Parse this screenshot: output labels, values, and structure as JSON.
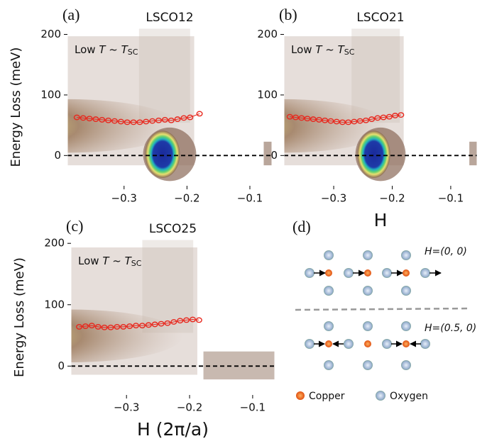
{
  "chart_data": [
    {
      "type": "scatter",
      "panel": "(a)",
      "title": "LSCO12",
      "annotation": [
        "Low ",
        "T",
        " ~ ",
        "T",
        "SC"
      ],
      "y_label": "Energy Loss (meV)",
      "blob": true,
      "xlim": [
        -0.39,
        -0.065
      ],
      "ylim": [
        -50,
        210
      ],
      "xticks": [
        {
          "value": -0.3,
          "label": "−0.3"
        },
        {
          "value": -0.2,
          "label": "−0.2"
        },
        {
          "value": -0.1,
          "label": "−0.1"
        }
      ],
      "yticks": [
        0,
        100,
        200
      ],
      "hline": 0,
      "series": [
        {
          "color": "#e8281e",
          "x": [
            -0.375,
            -0.365,
            -0.355,
            -0.345,
            -0.335,
            -0.325,
            -0.315,
            -0.305,
            -0.295,
            -0.285,
            -0.275,
            -0.265,
            -0.255,
            -0.245,
            -0.235,
            -0.225,
            -0.215,
            -0.205,
            -0.195,
            -0.18
          ],
          "values": [
            63,
            62,
            61,
            60,
            59,
            58,
            57,
            56,
            55,
            55,
            55,
            56,
            57,
            58,
            59,
            58,
            60,
            62,
            63,
            69
          ]
        }
      ]
    },
    {
      "type": "scatter",
      "panel": "(b)",
      "title": "LSCO21",
      "annotation": [
        "Low ",
        "T",
        " ~ ",
        "T",
        "SC"
      ],
      "x_label": "H",
      "blob": true,
      "xlim": [
        -0.385,
        -0.055
      ],
      "ylim": [
        -50,
        210
      ],
      "xticks": [
        {
          "value": -0.3,
          "label": "−0.3"
        },
        {
          "value": -0.2,
          "label": "−0.2"
        },
        {
          "value": -0.1,
          "label": "−0.1"
        }
      ],
      "yticks": [
        0,
        100,
        200
      ],
      "hline": 0,
      "series": [
        {
          "color": "#e8281e",
          "x": [
            -0.375,
            -0.365,
            -0.355,
            -0.345,
            -0.335,
            -0.325,
            -0.315,
            -0.305,
            -0.295,
            -0.285,
            -0.275,
            -0.265,
            -0.255,
            -0.245,
            -0.235,
            -0.225,
            -0.215,
            -0.205,
            -0.195,
            -0.185
          ],
          "values": [
            64,
            63,
            62,
            61,
            60,
            59,
            58,
            57,
            56,
            55,
            55,
            56,
            57,
            58,
            60,
            62,
            63,
            64,
            66,
            67
          ]
        }
      ]
    },
    {
      "type": "scatter",
      "panel": "(c)",
      "title": "LSCO25",
      "annotation": [
        "Low ",
        "T",
        " ~ ",
        "T",
        "SC"
      ],
      "y_label": "Energy Loss (meV)",
      "x_label": "H (2π/a)",
      "blob": false,
      "xlim": [
        -0.388,
        -0.065
      ],
      "ylim": [
        -47,
        206
      ],
      "xticks": [
        {
          "value": -0.3,
          "label": "−0.3"
        },
        {
          "value": -0.2,
          "label": "−0.2"
        },
        {
          "value": -0.1,
          "label": "−0.1"
        }
      ],
      "yticks": [
        0,
        100,
        200
      ],
      "hline": 0,
      "series": [
        {
          "color": "#e8281e",
          "x": [
            -0.375,
            -0.365,
            -0.355,
            -0.345,
            -0.335,
            -0.325,
            -0.315,
            -0.305,
            -0.295,
            -0.285,
            -0.275,
            -0.265,
            -0.255,
            -0.245,
            -0.235,
            -0.225,
            -0.215,
            -0.205,
            -0.195,
            -0.185
          ],
          "values": [
            64,
            65,
            66,
            64,
            63,
            63,
            64,
            64,
            65,
            66,
            66,
            67,
            68,
            69,
            70,
            72,
            74,
            75,
            76,
            75
          ]
        }
      ]
    }
  ],
  "diagram": {
    "label": "(d)",
    "top_label": "H=(0, 0)",
    "bottom_label": "H=(0.5, 0)",
    "legend": [
      "Copper",
      "Oxygen"
    ]
  }
}
